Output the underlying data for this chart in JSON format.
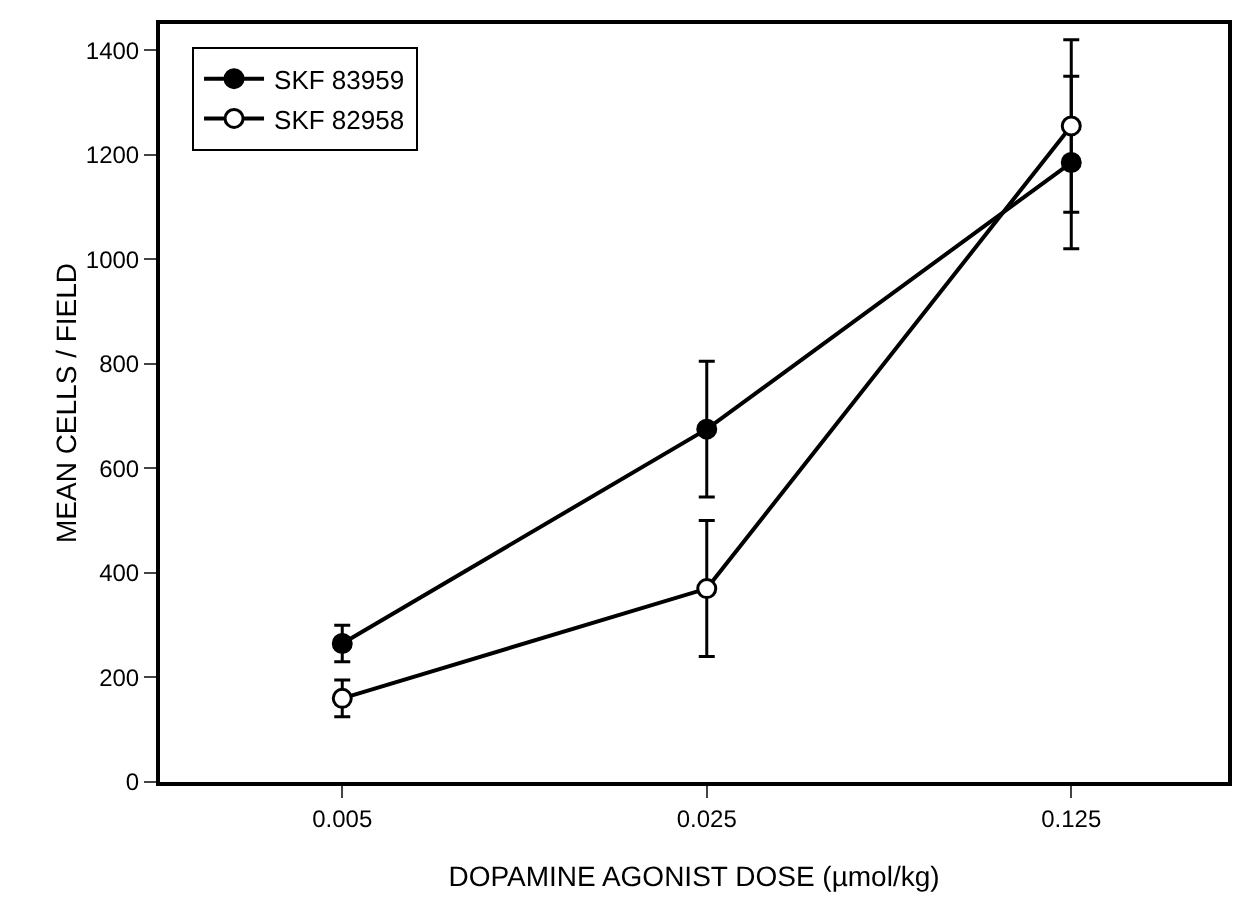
{
  "chart_data": {
    "type": "line",
    "xlabel": "DOPAMINE AGONIST DOSE (µmol/kg)",
    "ylabel": "MEAN CELLS / FIELD",
    "categories": [
      "0.005",
      "0.025",
      "0.125"
    ],
    "series": [
      {
        "name": "SKF 83959",
        "color": "#000000",
        "marker": "circle",
        "values": [
          265,
          675,
          1185
        ],
        "errors": [
          35,
          130,
          165
        ]
      },
      {
        "name": "SKF 82958",
        "color": "#ffffff",
        "marker": "circle",
        "values": [
          160,
          370,
          1255
        ],
        "errors": [
          35,
          130,
          165
        ]
      }
    ],
    "ylim": [
      0,
      1450
    ],
    "yticks": [
      0,
      200,
      400,
      600,
      800,
      1000,
      1200,
      1400
    ],
    "grid": false,
    "legend": "top left",
    "line_style": "solid"
  }
}
